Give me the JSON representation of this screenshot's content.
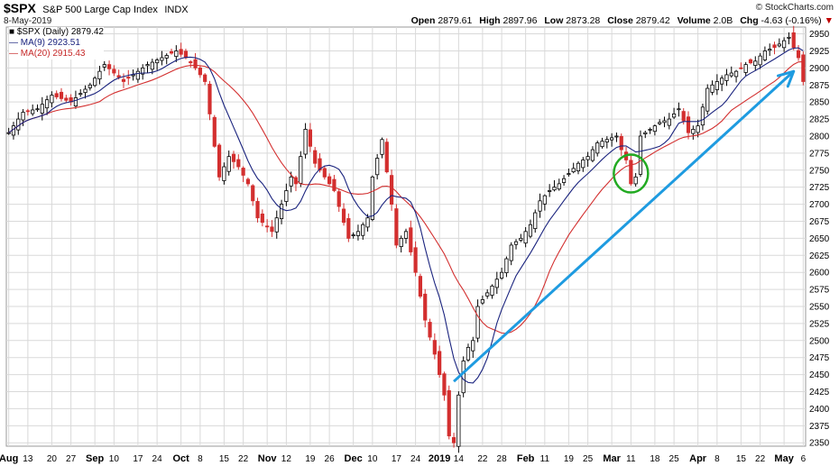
{
  "header": {
    "symbol": "$SPX",
    "description": "S&P 500 Large Cap Index",
    "exchange": "INDX",
    "date": "8-May-2019",
    "copyright": "© StockCharts.com"
  },
  "quote": {
    "open_label": "Open",
    "open": "2879.61",
    "high_label": "High",
    "high": "2897.96",
    "low_label": "Low",
    "low": "2873.28",
    "close_label": "Close",
    "close": "2879.42",
    "volume_label": "Volume",
    "volume": "2.0B",
    "chg_label": "Chg",
    "chg": "-4.63 (-0.16%)",
    "chg_arrow": "▼"
  },
  "legend": {
    "price": "■ $SPX (Daily) 2879.42",
    "ma9": "— MA(9) 2923.51",
    "ma20": "— MA(20) 2915.43"
  },
  "colors": {
    "up_candle": "#000000",
    "down_candle": "#d32f2f",
    "ma9": "#1a237e",
    "ma20": "#d32f2f",
    "trend_arrow": "#1e9be0",
    "highlight_circle": "#22aa22",
    "grid": "#d9d9d9"
  },
  "chart_data": {
    "type": "candlestick",
    "title": "$SPX S&P 500 Large Cap Index",
    "ylim": [
      2345,
      2960
    ],
    "y_ticks": [
      2350,
      2375,
      2400,
      2425,
      2450,
      2475,
      2500,
      2525,
      2550,
      2575,
      2600,
      2625,
      2650,
      2675,
      2700,
      2725,
      2750,
      2775,
      2800,
      2825,
      2850,
      2875,
      2900,
      2925,
      2950
    ],
    "x_ticks": [
      {
        "label": "Aug",
        "bold": true
      },
      {
        "label": "13"
      },
      {
        "label": "20"
      },
      {
        "label": "27"
      },
      {
        "label": "Sep",
        "bold": true
      },
      {
        "label": "10"
      },
      {
        "label": "17"
      },
      {
        "label": "24"
      },
      {
        "label": "Oct",
        "bold": true
      },
      {
        "label": "8"
      },
      {
        "label": "15"
      },
      {
        "label": "22"
      },
      {
        "label": "Nov",
        "bold": true
      },
      {
        "label": "12"
      },
      {
        "label": "19"
      },
      {
        "label": "26"
      },
      {
        "label": "Dec",
        "bold": true
      },
      {
        "label": "10"
      },
      {
        "label": "17"
      },
      {
        "label": "24"
      },
      {
        "label": "2019",
        "bold": true
      },
      {
        "label": "14"
      },
      {
        "label": "22"
      },
      {
        "label": "28"
      },
      {
        "label": "Feb",
        "bold": true
      },
      {
        "label": "11"
      },
      {
        "label": "19"
      },
      {
        "label": "25"
      },
      {
        "label": "Mar",
        "bold": true
      },
      {
        "label": "11"
      },
      {
        "label": "18"
      },
      {
        "label": "25"
      },
      {
        "label": "Apr",
        "bold": true
      },
      {
        "label": "8"
      },
      {
        "label": "15"
      },
      {
        "label": "22"
      },
      {
        "label": "May",
        "bold": true
      },
      {
        "label": "6"
      }
    ],
    "close_anchors": [
      [
        0,
        2805
      ],
      [
        3,
        2835
      ],
      [
        6,
        2840
      ],
      [
        9,
        2860
      ],
      [
        13,
        2850
      ],
      [
        17,
        2875
      ],
      [
        20,
        2905
      ],
      [
        24,
        2880
      ],
      [
        26,
        2890
      ],
      [
        29,
        2905
      ],
      [
        32,
        2915
      ],
      [
        35,
        2925
      ],
      [
        37,
        2915
      ],
      [
        39,
        2900
      ],
      [
        41,
        2880
      ],
      [
        43,
        2785
      ],
      [
        44,
        2740
      ],
      [
        46,
        2770
      ],
      [
        48,
        2755
      ],
      [
        50,
        2730
      ],
      [
        52,
        2680
      ],
      [
        55,
        2660
      ],
      [
        57,
        2700
      ],
      [
        59,
        2740
      ],
      [
        60,
        2730
      ],
      [
        62,
        2810
      ],
      [
        64,
        2760
      ],
      [
        66,
        2740
      ],
      [
        68,
        2720
      ],
      [
        71,
        2650
      ],
      [
        73,
        2660
      ],
      [
        75,
        2680
      ],
      [
        76,
        2740
      ],
      [
        78,
        2795
      ],
      [
        80,
        2700
      ],
      [
        81,
        2640
      ],
      [
        83,
        2660
      ],
      [
        85,
        2600
      ],
      [
        87,
        2530
      ],
      [
        89,
        2480
      ],
      [
        91,
        2420
      ],
      [
        92,
        2360
      ],
      [
        93,
        2350
      ],
      [
        94,
        2420
      ],
      [
        95,
        2470
      ],
      [
        96,
        2490
      ],
      [
        97,
        2500
      ],
      [
        98,
        2550
      ],
      [
        100,
        2570
      ],
      [
        102,
        2590
      ],
      [
        103,
        2600
      ],
      [
        105,
        2640
      ],
      [
        107,
        2650
      ],
      [
        109,
        2670
      ],
      [
        111,
        2705
      ],
      [
        113,
        2720
      ],
      [
        115,
        2730
      ],
      [
        117,
        2745
      ],
      [
        119,
        2760
      ],
      [
        121,
        2770
      ],
      [
        123,
        2790
      ],
      [
        125,
        2795
      ],
      [
        127,
        2800
      ],
      [
        128,
        2780
      ],
      [
        129,
        2765
      ],
      [
        130,
        2730
      ],
      [
        131,
        2740
      ],
      [
        132,
        2800
      ],
      [
        134,
        2810
      ],
      [
        136,
        2820
      ],
      [
        138,
        2825
      ],
      [
        140,
        2840
      ],
      [
        142,
        2805
      ],
      [
        144,
        2815
      ],
      [
        146,
        2870
      ],
      [
        148,
        2880
      ],
      [
        150,
        2890
      ],
      [
        152,
        2895
      ],
      [
        154,
        2905
      ],
      [
        156,
        2910
      ],
      [
        158,
        2925
      ],
      [
        160,
        2930
      ],
      [
        162,
        2940
      ],
      [
        163,
        2945
      ],
      [
        164,
        2930
      ],
      [
        165,
        2915
      ],
      [
        166,
        2880
      ]
    ],
    "trend_arrow": {
      "from": [
        93,
        2440
      ],
      "to": [
        164,
        2895
      ]
    },
    "highlight": {
      "index": 130,
      "low": 2720,
      "high": 2770
    }
  }
}
